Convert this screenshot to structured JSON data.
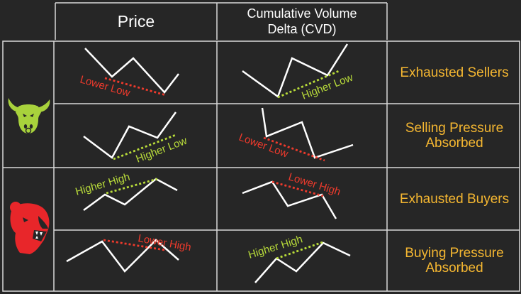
{
  "header": {
    "price_title": "Price",
    "cvd_title_line1": "Cumulative Volume",
    "cvd_title_line2": "Delta (CVD)"
  },
  "colors": {
    "background": "#262626",
    "grid_line": "#d8d8d8",
    "line": "#ffffff",
    "bearish": "#ee3a2c",
    "bullish": "#b9dc3a",
    "outcome_text": "#f5b731",
    "bull_icon": "#a8d23c",
    "bear_icon": "#e8262a"
  },
  "icons": {
    "bull": "bull-icon",
    "bear": "bear-icon"
  },
  "rows": [
    {
      "outcome_line1": "Exhausted Sellers",
      "outcome_line2": "",
      "price_label": "Lower Low",
      "price_label_color": "bearish",
      "cvd_label": "Higher Low",
      "cvd_label_color": "bullish"
    },
    {
      "outcome_line1": "Selling Pressure",
      "outcome_line2": "Absorbed",
      "price_label": "Higher Low",
      "price_label_color": "bullish",
      "cvd_label": "Lower Low",
      "cvd_label_color": "bearish"
    },
    {
      "outcome_line1": "Exhausted Buyers",
      "outcome_line2": "",
      "price_label": "Higher High",
      "price_label_color": "bullish",
      "cvd_label": "Lower High",
      "cvd_label_color": "bearish"
    },
    {
      "outcome_line1": "Buying Pressure",
      "outcome_line2": "Absorbed",
      "price_label": "Lower High",
      "price_label_color": "bearish",
      "cvd_label": "Higher High",
      "cvd_label_color": "bullish"
    }
  ]
}
